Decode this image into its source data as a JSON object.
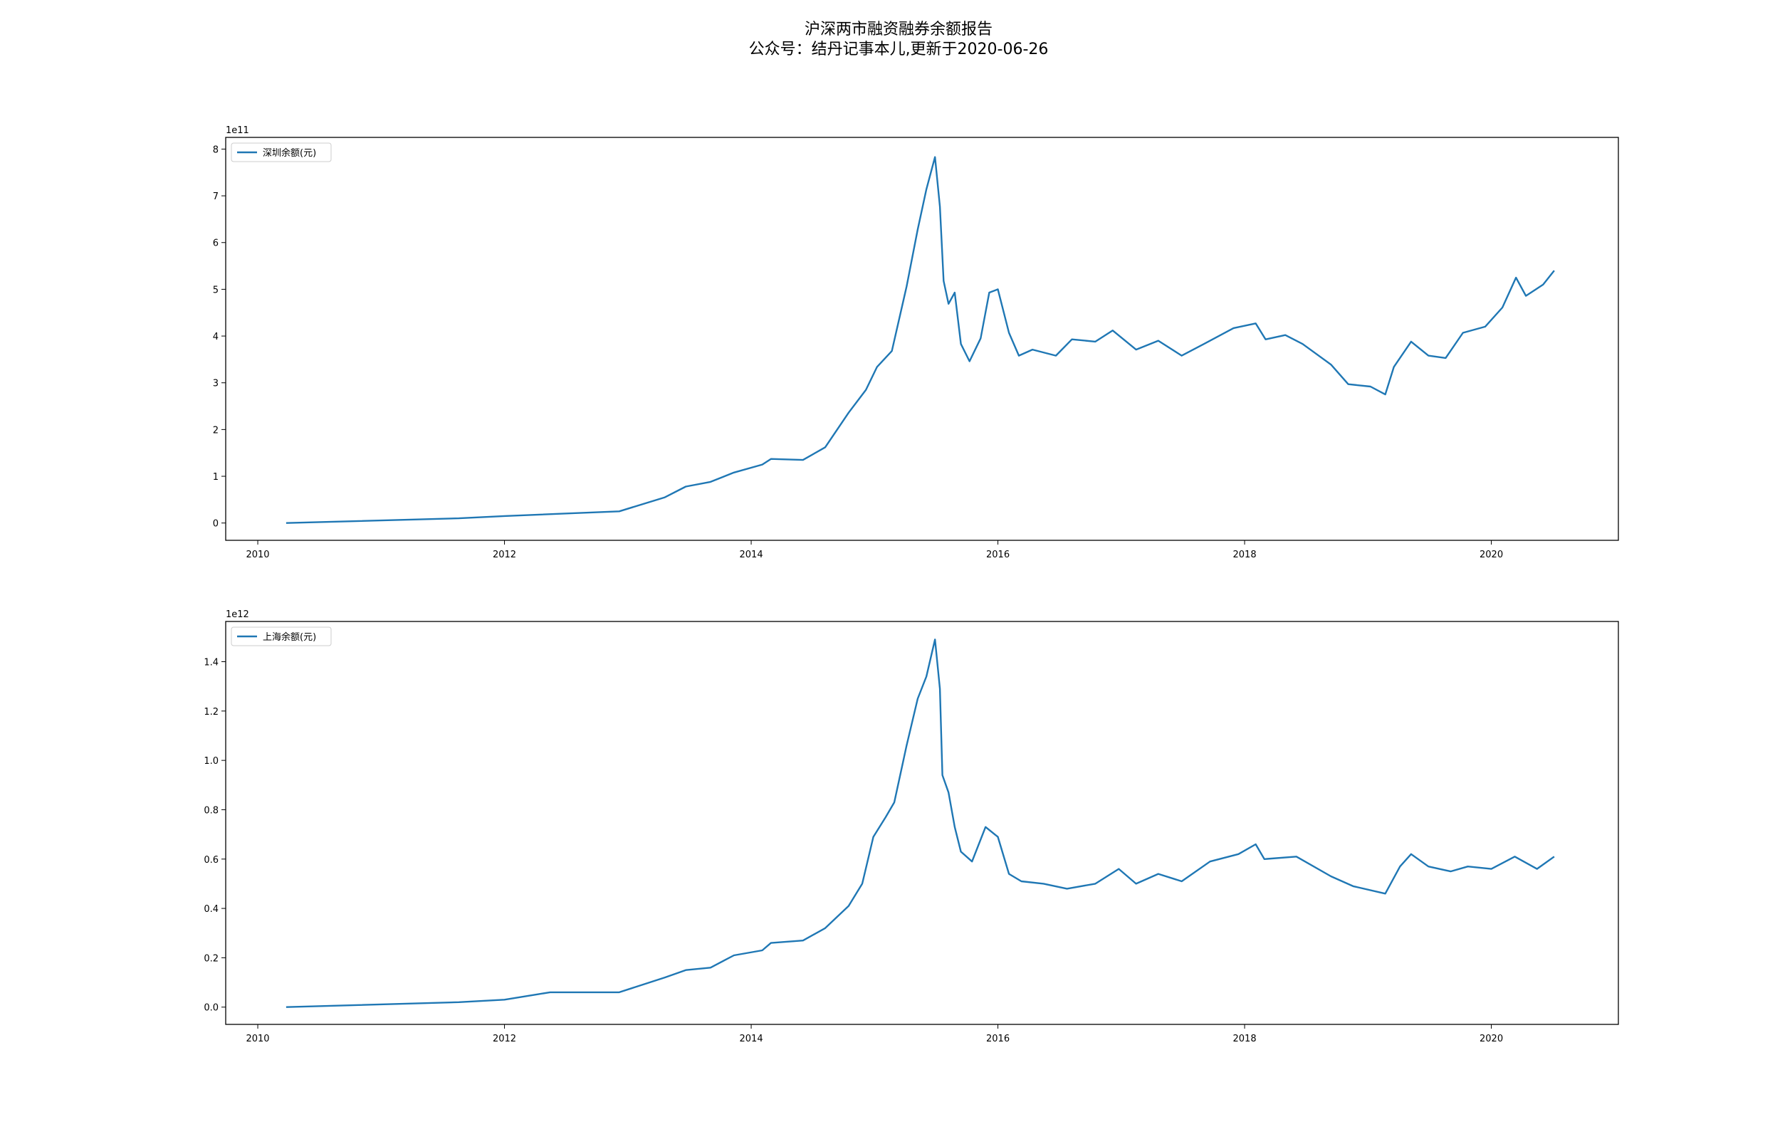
{
  "title": "沪深两市融资融券余额报告",
  "subtitle": "公众号：结丹记事本儿,更新于2020-06-26",
  "chart_data": [
    {
      "type": "line",
      "offset_label": "1e11",
      "legend": "upper left",
      "grid": false,
      "x": [
        2010.23,
        2011.63,
        2012.0,
        2012.93,
        2013.3,
        2013.47,
        2013.67,
        2013.86,
        2014.09,
        2014.16,
        2014.42,
        2014.6,
        2014.79,
        2014.93,
        2015.02,
        2015.14,
        2015.26,
        2015.35,
        2015.42,
        2015.49,
        2015.53,
        2015.56,
        2015.6,
        2015.65,
        2015.7,
        2015.77,
        2015.86,
        2015.93,
        2016.0,
        2016.09,
        2016.17,
        2016.28,
        2016.47,
        2016.6,
        2016.79,
        2016.93,
        2017.12,
        2017.3,
        2017.49,
        2017.67,
        2017.91,
        2018.09,
        2018.17,
        2018.33,
        2018.47,
        2018.7,
        2018.84,
        2019.02,
        2019.14,
        2019.21,
        2019.35,
        2019.49,
        2019.63,
        2019.77,
        2019.95,
        2020.09,
        2020.2,
        2020.28,
        2020.42,
        2020.51
      ],
      "series": [
        {
          "name": "深圳余额(元)",
          "color": "#1f77b4",
          "values": [
            0,
            0.1,
            0.15,
            0.25,
            0.55,
            0.78,
            0.88,
            1.08,
            1.25,
            1.37,
            1.35,
            1.62,
            2.36,
            2.85,
            3.34,
            3.68,
            5.06,
            6.28,
            7.14,
            7.83,
            6.77,
            5.18,
            4.69,
            4.93,
            3.83,
            3.46,
            3.95,
            4.93,
            5.0,
            4.07,
            3.58,
            3.71,
            3.58,
            3.93,
            3.88,
            4.12,
            3.71,
            3.9,
            3.58,
            3.83,
            4.17,
            4.27,
            3.93,
            4.02,
            3.83,
            3.39,
            2.97,
            2.92,
            2.75,
            3.34,
            3.88,
            3.58,
            3.53,
            4.07,
            4.2,
            4.61,
            5.25,
            4.86,
            5.1,
            5.4
          ]
        }
      ],
      "xlim": [
        2009.74,
        2021.03
      ],
      "xticks": [
        2010,
        2012,
        2014,
        2016,
        2018,
        2020
      ],
      "ylim": [
        -0.37,
        8.25
      ],
      "yticks": [
        0,
        1,
        2,
        3,
        4,
        5,
        6,
        7,
        8
      ]
    },
    {
      "type": "line",
      "offset_label": "1e12",
      "legend": "upper left",
      "grid": false,
      "x": [
        2010.23,
        2011.63,
        2012.0,
        2012.37,
        2012.93,
        2013.3,
        2013.47,
        2013.67,
        2013.86,
        2014.09,
        2014.16,
        2014.42,
        2014.6,
        2014.79,
        2014.9,
        2014.99,
        2015.09,
        2015.16,
        2015.26,
        2015.35,
        2015.42,
        2015.49,
        2015.53,
        2015.55,
        2015.6,
        2015.65,
        2015.7,
        2015.79,
        2015.9,
        2016.0,
        2016.09,
        2016.19,
        2016.37,
        2016.56,
        2016.79,
        2016.98,
        2017.12,
        2017.3,
        2017.49,
        2017.72,
        2017.95,
        2018.09,
        2018.16,
        2018.42,
        2018.7,
        2018.88,
        2019.14,
        2019.26,
        2019.35,
        2019.49,
        2019.67,
        2019.81,
        2020.0,
        2020.19,
        2020.37,
        2020.51
      ],
      "series": [
        {
          "name": "上海余额(元)",
          "color": "#1f77b4",
          "values": [
            0,
            0.02,
            0.03,
            0.06,
            0.06,
            0.12,
            0.15,
            0.16,
            0.21,
            0.23,
            0.26,
            0.27,
            0.32,
            0.41,
            0.5,
            0.69,
            0.77,
            0.83,
            1.06,
            1.25,
            1.34,
            1.49,
            1.29,
            0.94,
            0.87,
            0.73,
            0.63,
            0.59,
            0.73,
            0.69,
            0.54,
            0.51,
            0.5,
            0.48,
            0.5,
            0.56,
            0.5,
            0.54,
            0.51,
            0.59,
            0.62,
            0.66,
            0.6,
            0.61,
            0.53,
            0.49,
            0.46,
            0.57,
            0.62,
            0.57,
            0.55,
            0.57,
            0.56,
            0.61,
            0.56,
            0.61
          ]
        }
      ],
      "xlim": [
        2009.74,
        2021.03
      ],
      "xticks": [
        2010,
        2012,
        2014,
        2016,
        2018,
        2020
      ],
      "ylim": [
        -0.07,
        1.563
      ],
      "yticks": [
        {
          "value": 0,
          "label": "0.0"
        },
        0.2,
        0.4,
        0.6,
        0.8,
        {
          "value": 1,
          "label": "1.0"
        },
        1.2,
        1.4
      ]
    }
  ]
}
